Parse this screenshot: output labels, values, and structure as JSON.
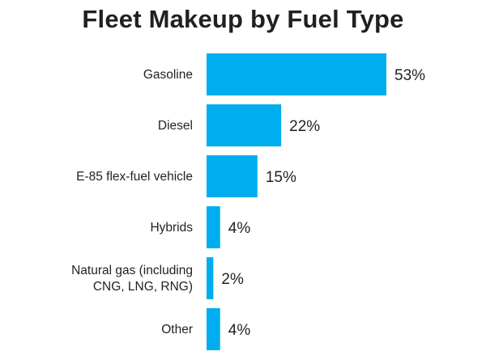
{
  "chart_data": {
    "type": "bar",
    "orientation": "horizontal",
    "title": "Fleet Makeup by Fuel Type",
    "xlabel": "",
    "ylabel": "",
    "xlim": [
      0,
      53
    ],
    "grid": false,
    "legend": "none",
    "value_suffix": "%",
    "categories": [
      [
        "Gasoline"
      ],
      [
        "Diesel"
      ],
      [
        "E-85 flex-fuel vehicle"
      ],
      [
        "Hybrids"
      ],
      [
        "Natural gas (including",
        "CNG, LNG, RNG)"
      ],
      [
        "Other"
      ]
    ],
    "values": [
      53,
      22,
      15,
      4,
      2,
      4
    ],
    "colors": {
      "bar": "#00aeef",
      "text": "#231f20"
    }
  }
}
